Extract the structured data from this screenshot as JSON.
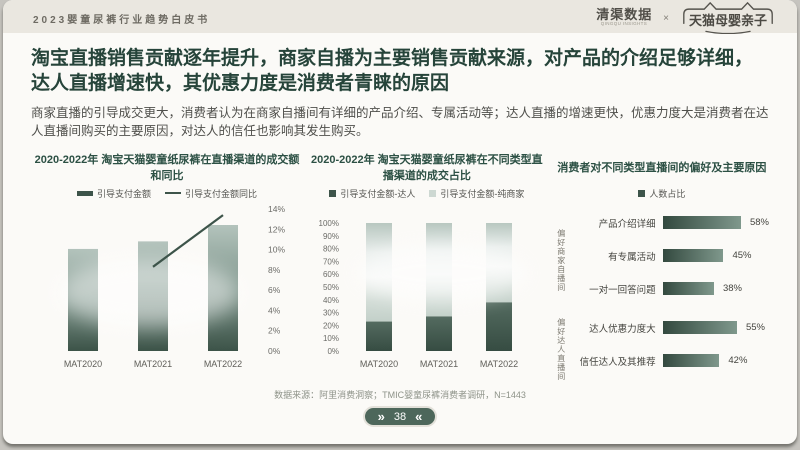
{
  "header": {
    "doc_title": "2023婴童尿裤行业趋势白皮书",
    "brand_name": "清渠数据",
    "brand_sub": "QINGQU INSIGHTS",
    "separator": "×",
    "partner": "天猫母婴亲子"
  },
  "headline": {
    "title": "淘宝直播销售贡献逐年提升，商家自播为主要销售贡献来源，对产品的介绍足够详细，达人直播增速快，其优惠力度是消费者青睐的原因",
    "summary": "商家直播的引导成交更大，消费者认为在商家自播间有详细的产品介绍、专属活动等；达人直播的增速更快，优惠力度大是消费者在达人直播间购买的主要原因，对达人的信任也影响其发生购买。"
  },
  "chart_data": [
    {
      "type": "bar-line-combo",
      "title": "2020-2022年 淘宝天猫婴童纸尿裤在直播渠道的成交额和同比",
      "categories": [
        "MAT2020",
        "MAT2021",
        "MAT2022"
      ],
      "bar_series": {
        "name": "引导支付金额",
        "relative_heights_pct_of_max": [
          81,
          87,
          100
        ],
        "value_axis_unlabeled": true
      },
      "line_series": {
        "name": "引导支付金额同比",
        "axis": "right",
        "values_pct": [
          null,
          8.3,
          13.4
        ]
      },
      "right_axis": {
        "min": 0,
        "max": 14,
        "tick_labels": [
          "14%",
          "12%",
          "10%",
          "8%",
          "6%",
          "4%",
          "2%",
          "0%"
        ]
      },
      "legend_position": "top"
    },
    {
      "type": "stacked-bar-100pct",
      "title": "2020-2022年 淘宝天猫婴童纸尿裤在不同类型直播渠道的成交占比",
      "categories": [
        "MAT2020",
        "MAT2021",
        "MAT2022"
      ],
      "series": [
        {
          "name": "引导支付金额-达人",
          "values_pct": [
            23,
            27,
            38
          ]
        },
        {
          "name": "引导支付金额-纯商家",
          "values_pct": [
            77,
            73,
            62
          ]
        }
      ],
      "y_axis": {
        "min": 0,
        "max": 100,
        "tick_labels": [
          "100%",
          "90%",
          "80%",
          "70%",
          "60%",
          "50%",
          "40%",
          "30%",
          "20%",
          "10%",
          "0%"
        ]
      },
      "legend_position": "top"
    },
    {
      "type": "bar-horizontal",
      "title": "消费者对不同类型直播间的偏好及主要原因",
      "legend": [
        "人数占比"
      ],
      "unit": "%",
      "groups": [
        {
          "label": "偏好商家自播间",
          "items": [
            {
              "label": "产品介绍详细",
              "value_pct": 58
            },
            {
              "label": "有专属活动",
              "value_pct": 45
            },
            {
              "label": "一对一回答问题",
              "value_pct": 38
            }
          ]
        },
        {
          "label": "偏好达人直播间",
          "items": [
            {
              "label": "达人优惠力度大",
              "value_pct": 55
            },
            {
              "label": "信任达人及其推荐",
              "value_pct": 42
            }
          ]
        }
      ]
    }
  ],
  "footer": {
    "source": "数据来源：阿里消费洞察；TMIC婴童尿裤消费者调研，N=1443",
    "left_icon": "»",
    "page": "38",
    "right_icon": "«"
  },
  "colors": {
    "accent_green": "#26443a",
    "bar_light": "#b3c3bc",
    "bar_mid": "#7e958b",
    "bar_dark": "#3c5348",
    "stack_dark_top": "#546b60",
    "stack_dark_bottom": "#364c42",
    "line": "#3d544a",
    "pill": "#4d675b",
    "header_bg": "#eae7e0",
    "card_bg": "#fbfaf7",
    "axis_text": "#6c6c68"
  }
}
